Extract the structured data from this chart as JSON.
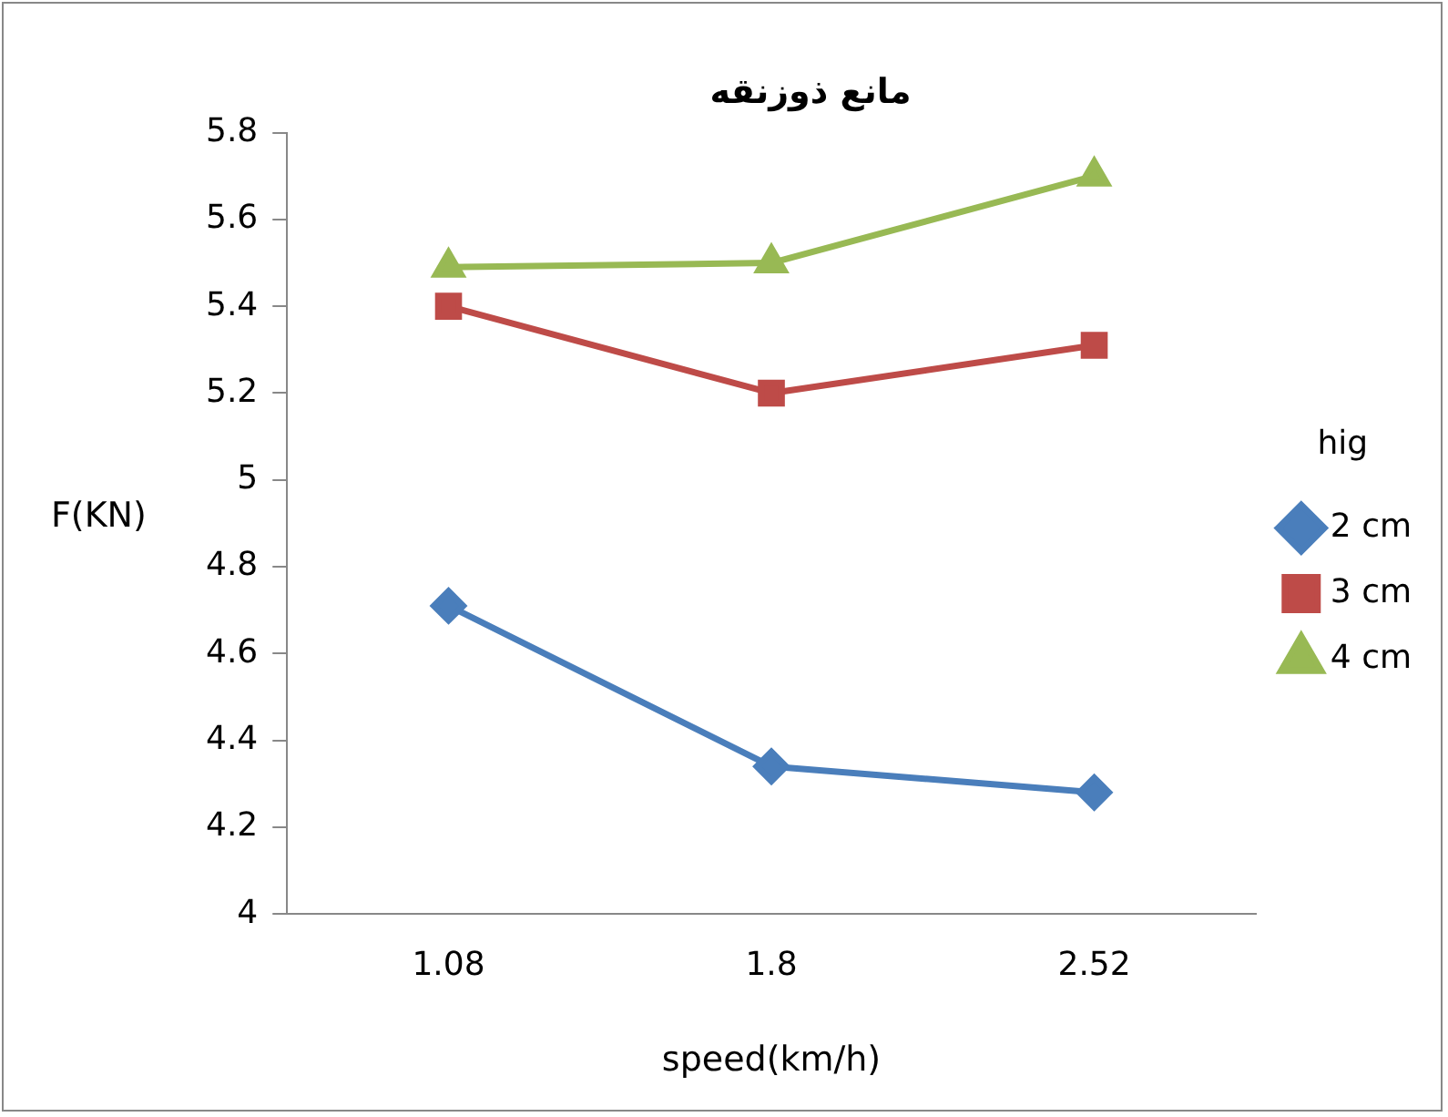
{
  "chart_data": {
    "type": "line",
    "title": "مانع ذوزنقه",
    "xlabel": "speed(km/h)",
    "ylabel": "F(KN)",
    "legend_title": "hig",
    "categories": [
      "1.08",
      "1.8",
      "2.52"
    ],
    "series": [
      {
        "name": "2 cm",
        "color": "#4a7ebb",
        "marker": "diamond",
        "values": [
          4.71,
          4.34,
          4.28
        ]
      },
      {
        "name": "3 cm",
        "color": "#be4b48",
        "marker": "square",
        "values": [
          5.4,
          5.2,
          5.31
        ]
      },
      {
        "name": "4 cm",
        "color": "#98b954",
        "marker": "triangle",
        "values": [
          5.49,
          5.5,
          5.7
        ]
      }
    ],
    "ylim": [
      4,
      5.8
    ],
    "yticks": [
      4,
      4.2,
      4.4,
      4.6,
      4.8,
      5,
      5.2,
      5.4,
      5.6,
      5.8
    ],
    "grid": false,
    "legend": "right",
    "line_style": "solid"
  }
}
